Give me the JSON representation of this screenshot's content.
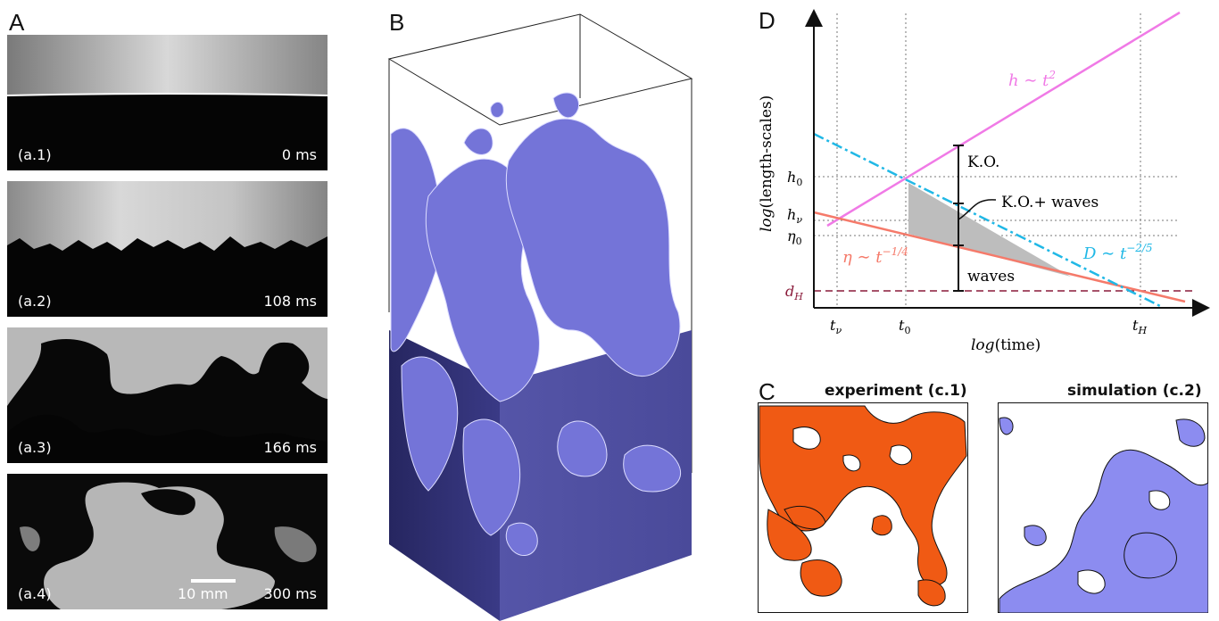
{
  "panels": {
    "A": {
      "letter": "A",
      "frames": [
        {
          "id": "(a.1)",
          "time": "0 ms"
        },
        {
          "id": "(a.2)",
          "time": "108 ms"
        },
        {
          "id": "(a.3)",
          "time": "166 ms"
        },
        {
          "id": "(a.4)",
          "time": "300 ms"
        }
      ],
      "scale_bar": "10 mm"
    },
    "B": {
      "letter": "B"
    },
    "C": {
      "letter": "C",
      "left_label": "experiment (c.1)",
      "right_label": "simulation  (c.2)",
      "colors": {
        "experiment": "#f05a14",
        "simulation": "#8c8cf0"
      }
    },
    "D": {
      "letter": "D",
      "xlabel_prefix": "log",
      "xlabel_word": "(time)",
      "ylabel_prefix": "log",
      "ylabel_word": "(length-scales)",
      "y_ticks": [
        "h0",
        "hν",
        "η0",
        "dH"
      ],
      "x_ticks": [
        "tν",
        "t0",
        "tH"
      ],
      "annotations": {
        "ko": "K.O.",
        "ko_waves": "K.O.+ waves",
        "waves": "waves",
        "h_law": "h ∼ t²",
        "D_law": "D ∼ t^(−2/5)",
        "eta_law": "η ∼ t^(−1/4)"
      },
      "colors": {
        "h": "#f07ae6",
        "D": "#20b8e6",
        "eta": "#f57a6a",
        "dH": "#8a1a3a",
        "shade": "#bdbdbd"
      }
    }
  },
  "chart_data": {
    "type": "line",
    "title": "",
    "xlabel": "log(time)",
    "ylabel": "log(length-scales)",
    "log_scale": true,
    "grid": false,
    "series": [
      {
        "name": "h ∼ t²",
        "slope": 2
      },
      {
        "name": "D ∼ t^(−2/5)",
        "slope": -0.4
      },
      {
        "name": "η ∼ t^(−1/4)",
        "slope": -0.25
      }
    ],
    "x_ticks": [
      "tν",
      "t0",
      "tH"
    ],
    "y_ticks": [
      "h0",
      "hν",
      "η0",
      "dH"
    ],
    "regions": [
      "K.O.",
      "K.O.+ waves",
      "waves"
    ]
  }
}
